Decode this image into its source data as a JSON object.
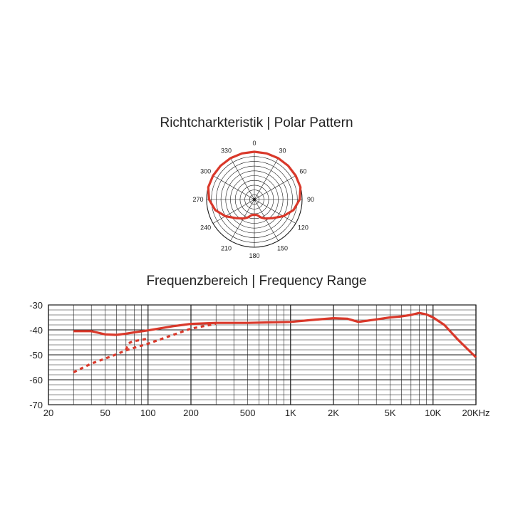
{
  "colors": {
    "curve": "#d9382a",
    "grid": "#1a1a1a",
    "text": "#222222"
  },
  "chart_data": [
    {
      "type": "polar",
      "title": "Richtcharkteristik | Polar Pattern",
      "angle_labels": [
        "0",
        "30",
        "60",
        "90",
        "120",
        "150",
        "180",
        "210",
        "240",
        "270",
        "300",
        "330"
      ],
      "series": [
        {
          "angles": [
            0,
            15,
            30,
            45,
            60,
            75,
            90,
            105,
            120,
            135,
            150,
            160,
            170,
            180,
            190,
            200,
            210,
            225,
            240,
            255,
            270,
            285,
            300,
            315,
            330,
            345,
            360
          ],
          "radius": [
            1.0,
            1.0,
            1.0,
            1.0,
            1.0,
            1.0,
            0.95,
            0.85,
            0.7,
            0.55,
            0.46,
            0.4,
            0.33,
            0.32,
            0.33,
            0.4,
            0.46,
            0.55,
            0.7,
            0.85,
            0.95,
            1.0,
            1.0,
            1.0,
            1.0,
            1.0,
            1.0
          ]
        }
      ]
    },
    {
      "type": "line",
      "title": "Frequenzbereich | Frequency Range",
      "x_scale": "log",
      "xlim": [
        20,
        20000
      ],
      "ylim": [
        -70,
        -30
      ],
      "x_ticks": [
        {
          "value": 20,
          "label": "20"
        },
        {
          "value": 50,
          "label": "50"
        },
        {
          "value": 100,
          "label": "100"
        },
        {
          "value": 200,
          "label": "200"
        },
        {
          "value": 500,
          "label": "500"
        },
        {
          "value": 1000,
          "label": "1K"
        },
        {
          "value": 2000,
          "label": "2K"
        },
        {
          "value": 5000,
          "label": "5K"
        },
        {
          "value": 10000,
          "label": "10K"
        },
        {
          "value": 20000,
          "label": "20KHz"
        }
      ],
      "y_ticks": [
        {
          "value": -30,
          "label": "-30"
        },
        {
          "value": -40,
          "label": "-40"
        },
        {
          "value": -50,
          "label": "-50"
        },
        {
          "value": -60,
          "label": "-60"
        },
        {
          "value": -70,
          "label": "-70"
        }
      ],
      "grid": true,
      "series": [
        {
          "style": "solid",
          "x": [
            30,
            40,
            50,
            60,
            70,
            80,
            100,
            150,
            200,
            300,
            500,
            1000,
            1500,
            2000,
            2500,
            3000,
            4000,
            5000,
            6000,
            7000,
            8000,
            9000,
            10000,
            12000,
            15000,
            20000
          ],
          "y": [
            -40.5,
            -40.5,
            -41.8,
            -42.0,
            -41.5,
            -41.0,
            -40.2,
            -38.5,
            -37.6,
            -37.2,
            -37.2,
            -36.8,
            -35.9,
            -35.3,
            -35.5,
            -36.8,
            -35.8,
            -35.0,
            -34.6,
            -34.0,
            -33.2,
            -33.8,
            -35.0,
            -38.0,
            -44.0,
            -51.0
          ]
        },
        {
          "style": "dashed",
          "x": [
            30,
            40,
            50,
            60,
            70,
            100,
            150,
            200,
            300
          ],
          "y": [
            -57.0,
            -53.5,
            -51.5,
            -49.8,
            -48.2,
            -45.5,
            -42.0,
            -39.5,
            -37.5
          ]
        },
        {
          "style": "dashed",
          "x": [
            70,
            72,
            75,
            80,
            100
          ],
          "y": [
            -48.0,
            -46.0,
            -45.0,
            -44.5,
            -43.5
          ]
        }
      ]
    }
  ]
}
